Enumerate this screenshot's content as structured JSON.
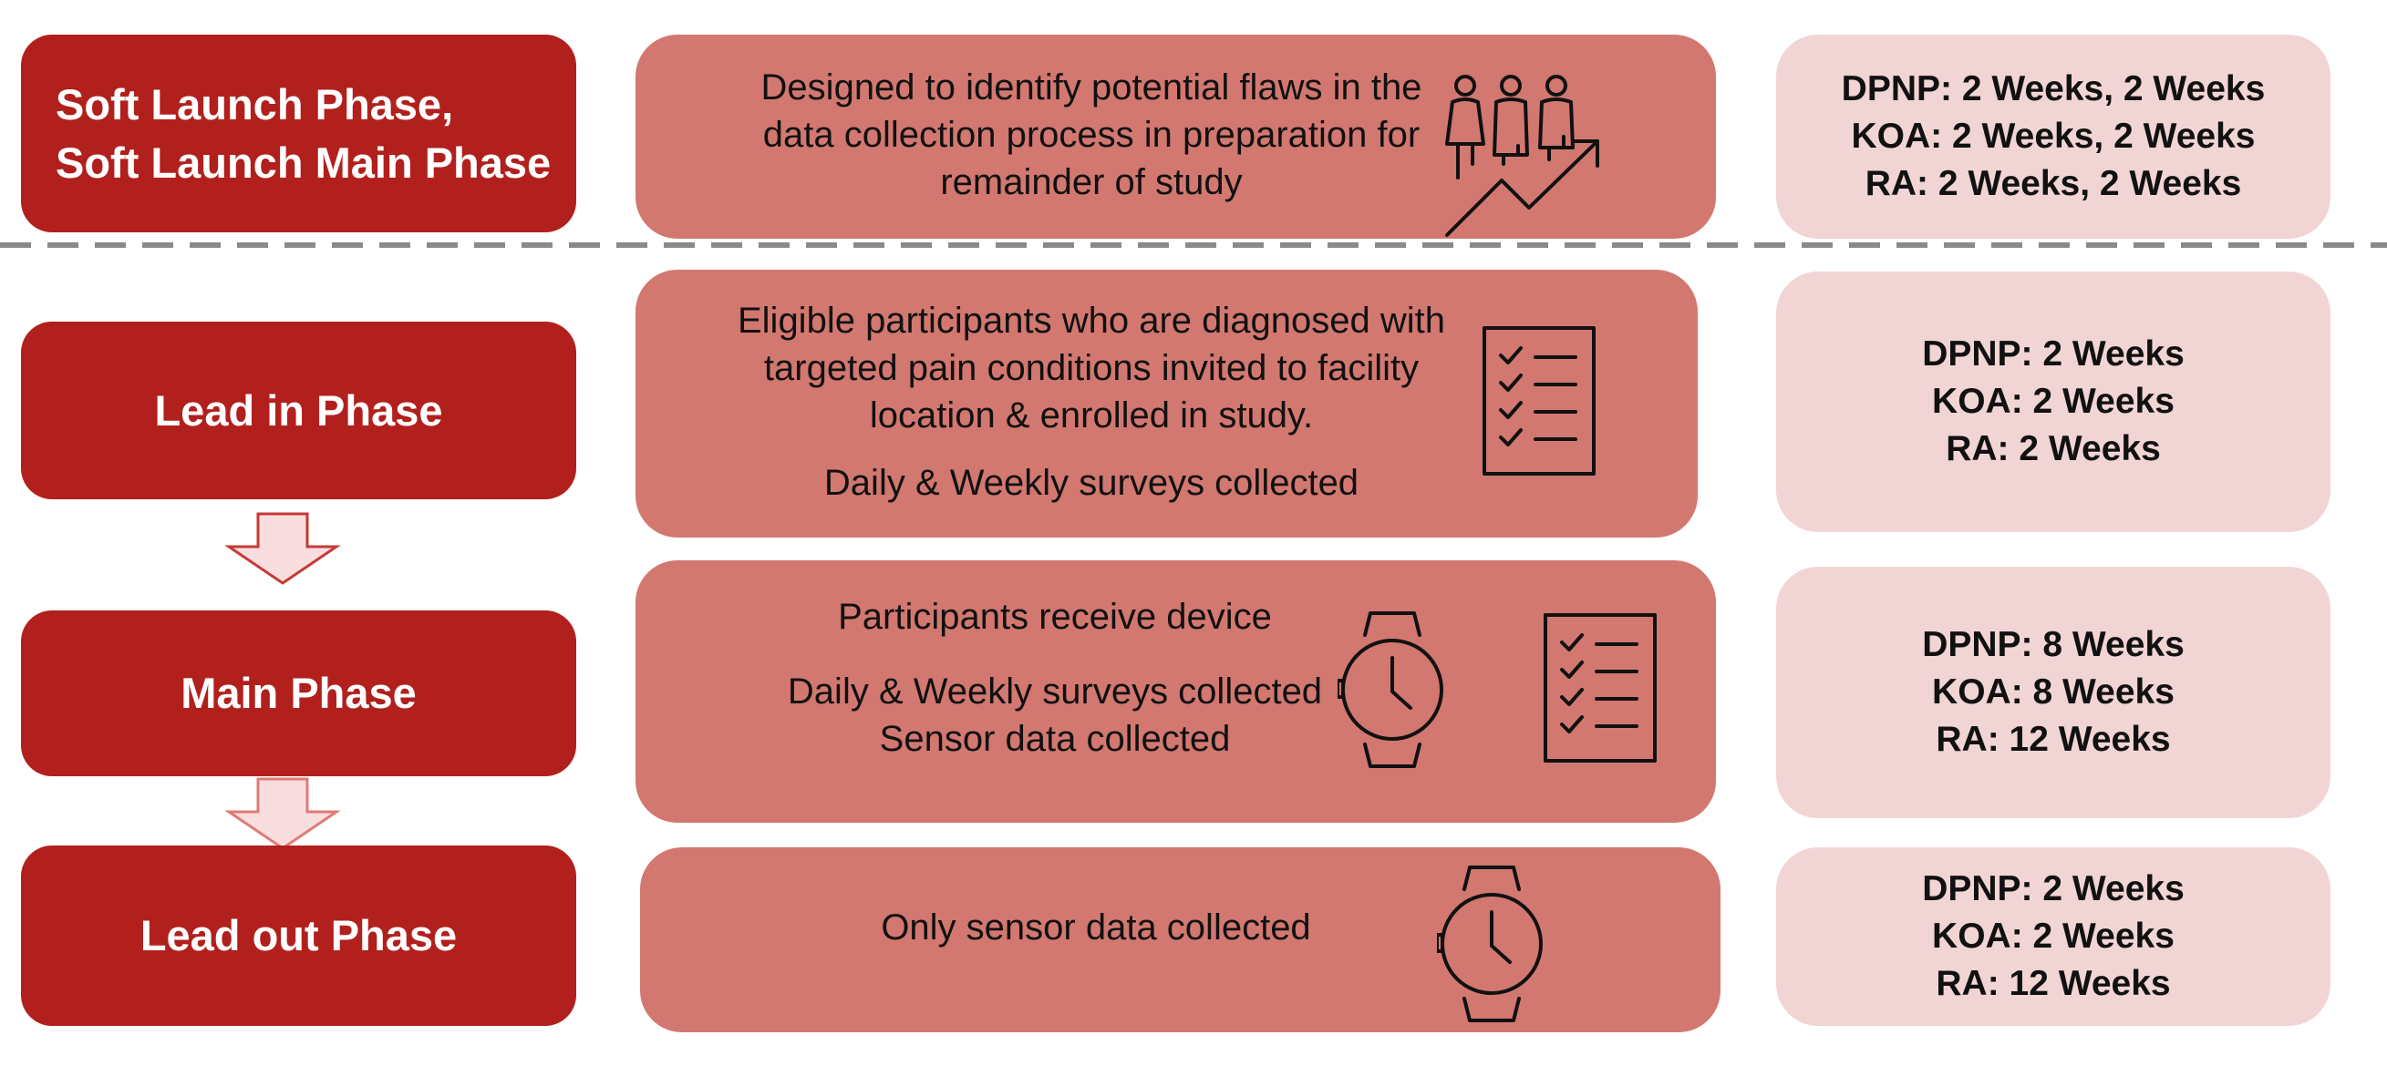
{
  "phases": {
    "soft_launch": "Soft Launch Phase,",
    "soft_launch_main": "Soft Launch Main Phase",
    "lead_in": "Lead in Phase",
    "main": "Main Phase",
    "lead_out": "Lead out Phase"
  },
  "descriptions": {
    "soft_launch": {
      "line1": "Designed to identify potential flaws in the",
      "line2": "data collection process in preparation for",
      "line3": "remainder of study"
    },
    "lead_in": {
      "line1": "Eligible participants who are diagnosed with",
      "line2": "targeted pain conditions invited to facility",
      "line3": "location & enrolled in study.",
      "line4": "Daily & Weekly surveys collected"
    },
    "main": {
      "line1": "Participants receive device",
      "line2": "Daily & Weekly surveys collected",
      "line3": "Sensor data collected"
    },
    "lead_out": {
      "line1": "Only sensor data collected"
    }
  },
  "durations": {
    "soft_launch": [
      "DPNP: 2 Weeks, 2 Weeks",
      "KOA: 2 Weeks, 2 Weeks",
      "RA: 2 Weeks, 2 Weeks"
    ],
    "lead_in": [
      "DPNP: 2 Weeks",
      "KOA: 2 Weeks",
      "RA: 2 Weeks"
    ],
    "main": [
      "DPNP: 8 Weeks",
      "KOA: 8 Weeks",
      "RA: 12 Weeks"
    ],
    "lead_out": [
      "DPNP: 2 Weeks",
      "KOA: 2 Weeks",
      "RA: 12 Weeks"
    ]
  },
  "icons": {
    "soft_launch": "people-growth-icon",
    "lead_in": "checklist-icon",
    "main": [
      "smartwatch-icon",
      "checklist-icon"
    ],
    "lead_out": "smartwatch-icon"
  },
  "colors": {
    "phase_box": "#b1201c",
    "description_box": "#d27870",
    "duration_box": "#f1d5d4",
    "divider": "#8a8a8a"
  }
}
